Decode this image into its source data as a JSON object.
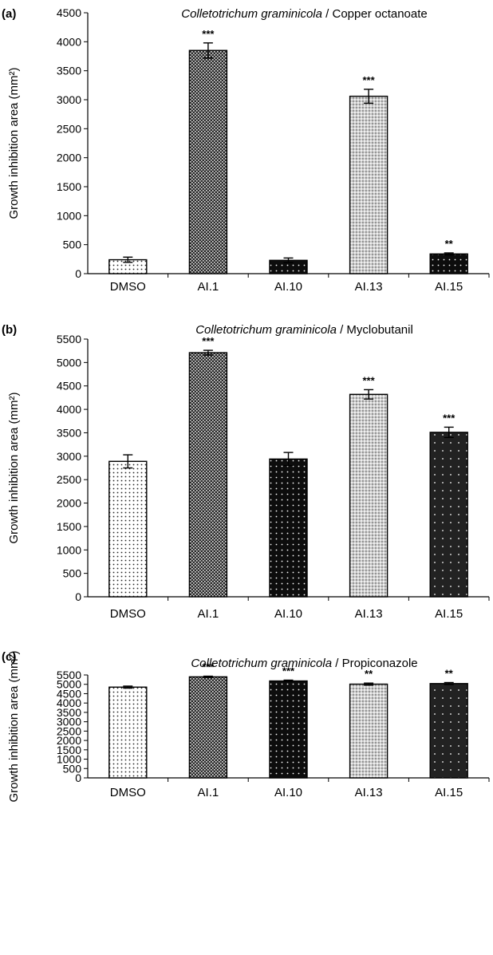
{
  "chart_data": [
    {
      "type": "bar",
      "panel_label": "(a)",
      "title_species": "Colletotrichum graminicola",
      "title_treatment": " / Copper octanoate",
      "ylabel": "Growth inhibition area (mm²)",
      "ylim": [
        0,
        4500
      ],
      "yticks": [
        0,
        500,
        1000,
        1500,
        2000,
        2500,
        3000,
        3500,
        4000,
        4500
      ],
      "categories": [
        "DMSO",
        "AI.1",
        "AI.10",
        "AI.13",
        "AI.15"
      ],
      "values": [
        240,
        3850,
        230,
        3060,
        340
      ],
      "errors": [
        45,
        130,
        40,
        120,
        18
      ],
      "significance": [
        "",
        "***",
        "",
        "***",
        "**"
      ],
      "patterns": [
        "sparse-dots",
        "dense-checker",
        "dark-dots",
        "light-checker",
        "dark-dots"
      ]
    },
    {
      "type": "bar",
      "panel_label": "(b)",
      "title_species": "Colletotrichum graminicola",
      "title_treatment": " / Myclobutanil",
      "ylabel": "Growth inhibition area (mm²)",
      "ylim": [
        0,
        5500
      ],
      "yticks": [
        0,
        500,
        1000,
        1500,
        2000,
        2500,
        3000,
        3500,
        4000,
        4500,
        5000,
        5500
      ],
      "categories": [
        "DMSO",
        "AI.1",
        "AI.10",
        "AI.13",
        "AI.15"
      ],
      "values": [
        2890,
        5210,
        2940,
        4320,
        3510
      ],
      "errors": [
        140,
        50,
        140,
        100,
        110
      ],
      "significance": [
        "",
        "***",
        "",
        "***",
        "***"
      ],
      "patterns": [
        "sparse-dots",
        "dense-checker",
        "dark-dots",
        "light-checker",
        "dark-sparse-dots"
      ]
    },
    {
      "type": "bar",
      "panel_label": "(c)",
      "title_species": "Colletotrichum graminicola",
      "title_treatment": " / Propiconazole",
      "ylabel": "Growth inhibition area (mm²)",
      "ylim": [
        0,
        5500
      ],
      "yticks": [
        0,
        500,
        1000,
        1500,
        2000,
        2500,
        3000,
        3500,
        4000,
        4500,
        5000,
        5500
      ],
      "categories": [
        "DMSO",
        "AI.1",
        "AI.10",
        "AI.13",
        "AI.15"
      ],
      "values": [
        4850,
        5400,
        5180,
        5010,
        5040
      ],
      "errors": [
        55,
        35,
        45,
        55,
        55
      ],
      "significance": [
        "",
        "***",
        "***",
        "**",
        "**"
      ],
      "patterns": [
        "sparse-dots",
        "dense-checker",
        "dark-dots",
        "light-checker",
        "dark-sparse-dots"
      ]
    }
  ]
}
